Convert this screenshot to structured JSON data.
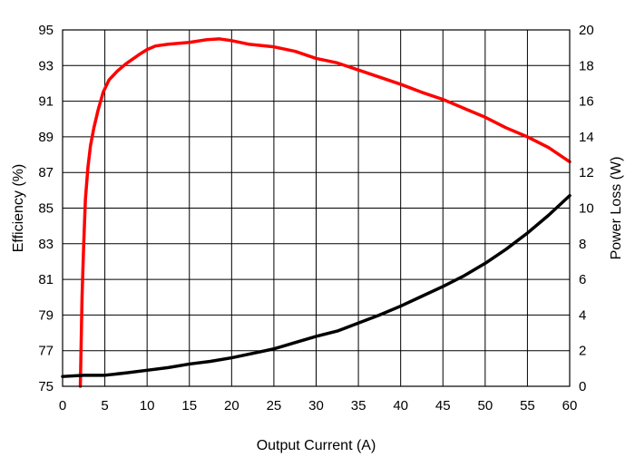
{
  "chart_data": {
    "type": "line",
    "xlabel": "Output Current (A)",
    "ylabel": "Efficiency (%)",
    "y2label": "Power Loss (W)",
    "xlim": [
      0,
      60
    ],
    "ylim": [
      75,
      95
    ],
    "y2lim": [
      0,
      20
    ],
    "xticks": [
      0,
      5,
      10,
      15,
      20,
      25,
      30,
      35,
      40,
      45,
      50,
      55,
      60
    ],
    "yticks": [
      75,
      77,
      79,
      81,
      83,
      85,
      87,
      89,
      91,
      93,
      95
    ],
    "y2ticks": [
      0,
      2,
      4,
      6,
      8,
      10,
      12,
      14,
      16,
      18,
      20
    ],
    "grid": true,
    "series": [
      {
        "axis": "left",
        "color": "#ff0000",
        "x": [
          2.1,
          2.2,
          2.3,
          2.5,
          2.7,
          3.0,
          3.3,
          3.7,
          4.2,
          4.8,
          5.5,
          6.5,
          7.5,
          9,
          10,
          11,
          12.5,
          15,
          17,
          18.5,
          20,
          22,
          25,
          27.5,
          30,
          32.5,
          35,
          37.5,
          40,
          42.5,
          45,
          47.5,
          50,
          52.5,
          55,
          57.5,
          60
        ],
        "values": [
          75.0,
          77.5,
          80.0,
          83.0,
          85.5,
          87.3,
          88.5,
          89.5,
          90.5,
          91.5,
          92.2,
          92.7,
          93.1,
          93.6,
          93.9,
          94.1,
          94.2,
          94.3,
          94.45,
          94.5,
          94.4,
          94.2,
          94.05,
          93.8,
          93.4,
          93.15,
          92.75,
          92.35,
          91.95,
          91.5,
          91.1,
          90.6,
          90.1,
          89.5,
          89.0,
          88.4,
          87.6
        ]
      },
      {
        "axis": "right",
        "color": "#000000",
        "x": [
          0,
          2.5,
          5,
          7.5,
          10,
          12.5,
          15,
          17.5,
          20,
          22.5,
          25,
          27.5,
          30,
          32.5,
          35,
          37.5,
          40,
          42.5,
          45,
          47.5,
          50,
          52.5,
          55,
          57.5,
          60
        ],
        "values": [
          0.55,
          0.62,
          0.62,
          0.75,
          0.9,
          1.05,
          1.25,
          1.4,
          1.6,
          1.85,
          2.1,
          2.45,
          2.8,
          3.1,
          3.55,
          4.0,
          4.5,
          5.05,
          5.6,
          6.2,
          6.9,
          7.7,
          8.6,
          9.6,
          10.7
        ]
      }
    ]
  }
}
